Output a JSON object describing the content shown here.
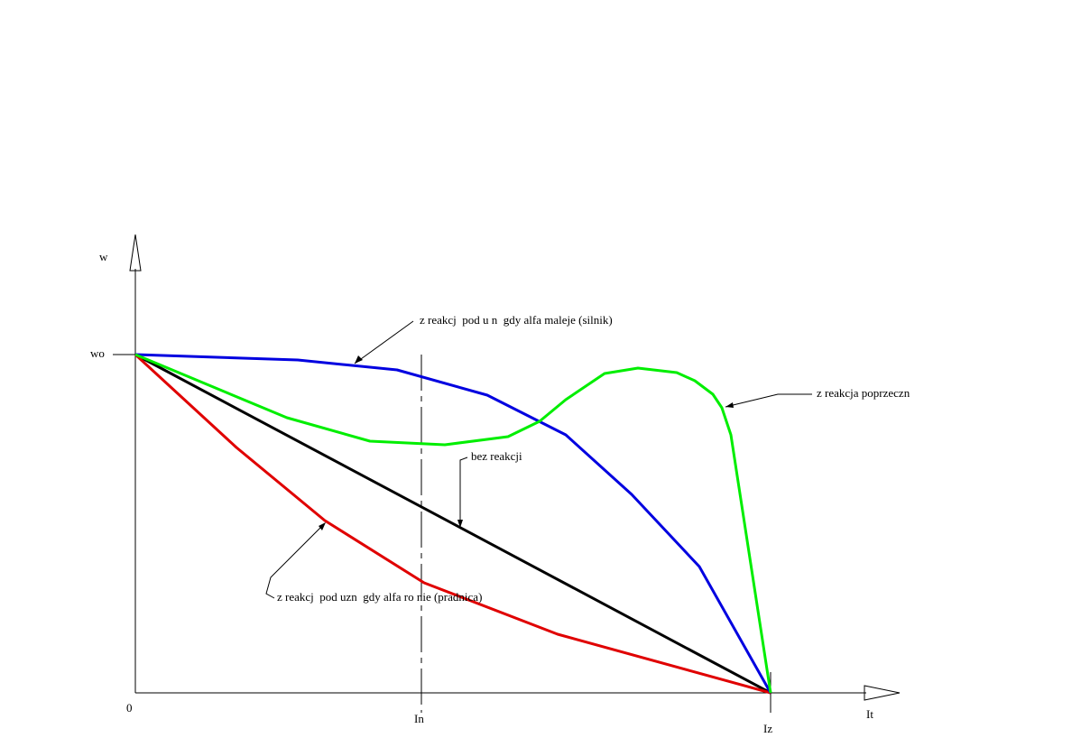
{
  "axes": {
    "y_label": "w",
    "y_mark": "wo",
    "origin": "0",
    "x_mark_1": "In",
    "x_mark_2": "Iz",
    "x_label": "It"
  },
  "annotations": {
    "blue": "z reakcj  pod u n  gdy alfa maleje (silnik)",
    "green": "z reakcja poprzeczn",
    "black": "bez reakcji",
    "red": "z reakcj  pod uzn  gdy alfa ro nie (pradnica)"
  }
}
